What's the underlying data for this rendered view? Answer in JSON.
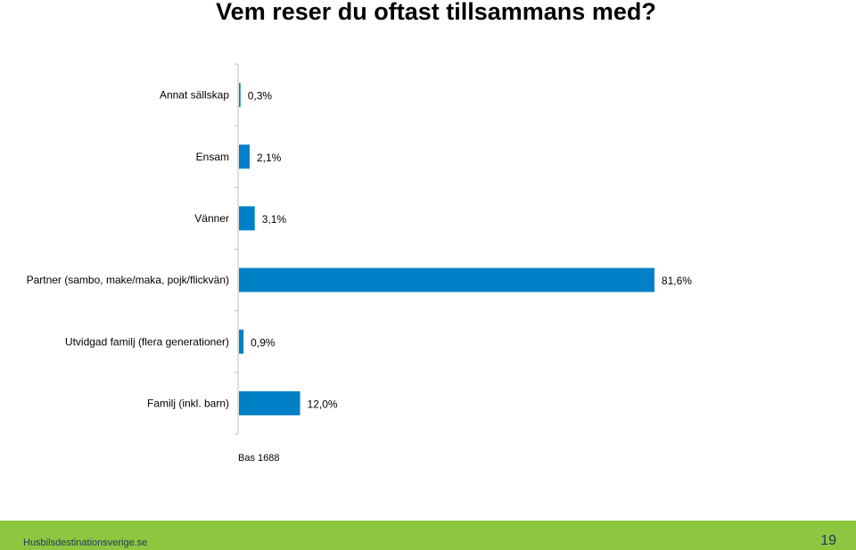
{
  "title": "Vem reser du oftast tillsammans med?",
  "chart_data": {
    "type": "bar",
    "orientation": "horizontal",
    "categories": [
      "Annat sällskap",
      "Ensam",
      "Vänner",
      "Partner (sambo, make/maka, pojk/flickvän)",
      "Utvidgad familj (flera generationer)",
      "Familj (inkl. barn)"
    ],
    "values": [
      0.3,
      2.1,
      3.1,
      81.6,
      0.9,
      12.0
    ],
    "value_labels": [
      "0,3%",
      "2,1%",
      "3,1%",
      "81,6%",
      "0,9%",
      "12,0%"
    ],
    "unit": "%",
    "xlim": [
      0,
      100
    ],
    "grid": false,
    "bar_color": "#0080c6",
    "note": "Bas 1688"
  },
  "footer": {
    "site": "Husbilsdestinationsverige.se",
    "page_number": "19",
    "color": "#8dc63f"
  }
}
